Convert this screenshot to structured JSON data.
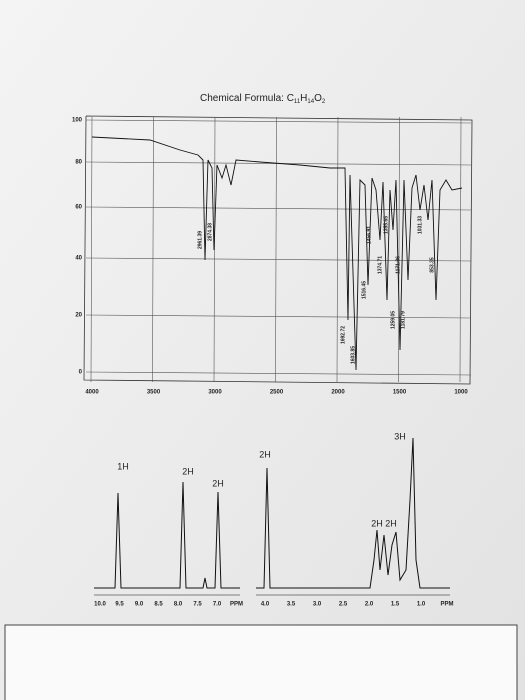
{
  "header": {
    "title_parts": [
      "Chemical Formula: C",
      "11",
      "H",
      "14",
      "O",
      "2"
    ]
  },
  "ir_spectrum": {
    "y_tick_labels": [
      "100",
      "80",
      "60",
      "40",
      "20",
      "0"
    ],
    "x_tick_labels": [
      "4000",
      "3500",
      "3000",
      "2500",
      "2000",
      "1500",
      "1000"
    ],
    "peak_labels": [
      "2961.39",
      "2874.38",
      "1692.72",
      "1603.85",
      "1516.45",
      "1456.91",
      "1374.71",
      "1355.65",
      "1259.05",
      "1171.36",
      "1181.79",
      "1031.33",
      "853.35"
    ]
  },
  "nmr_spectrum": {
    "integrations": [
      "1H",
      "2H",
      "2H",
      "2H",
      "3H",
      "2H 2H"
    ],
    "left_axis_labels": [
      "10.0",
      "9.5",
      "9.0",
      "8.5",
      "8.0",
      "7.5",
      "7.0",
      "PPM"
    ],
    "right_axis_labels": [
      "4.0",
      "3.5",
      "3.0",
      "2.5",
      "2.0",
      "1.5",
      "1.0",
      "PPM"
    ]
  }
}
